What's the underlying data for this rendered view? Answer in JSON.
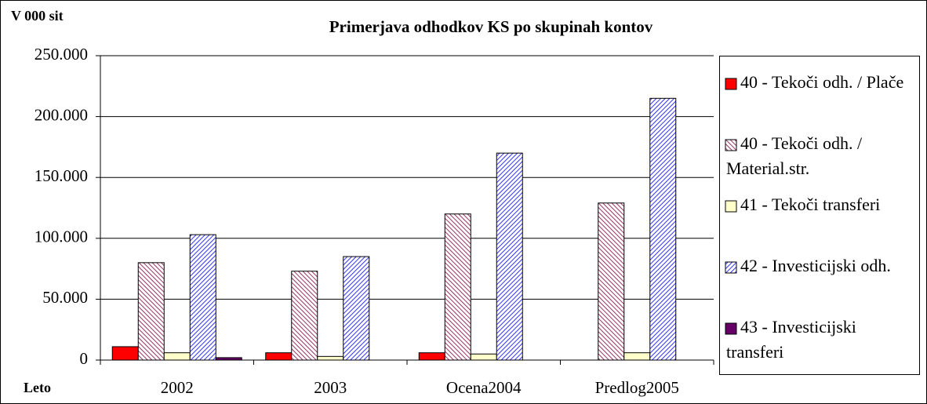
{
  "chart_data": {
    "type": "bar",
    "title": "Primerjava odhodkov KS po skupinah kontov",
    "y_label": "V 000 sit",
    "x_label": "Leto",
    "categories": [
      "2002",
      "2003",
      "Ocena2004",
      "Predlog2005"
    ],
    "series": [
      {
        "name": "40 - Tekoči odh. / Plače",
        "color": "#ff0000",
        "values": [
          11000,
          6000,
          6000,
          0
        ]
      },
      {
        "name": "40 - Tekoči odh. / Material.str.",
        "color": "#993366",
        "pattern": "hatch",
        "values": [
          80000,
          73000,
          120000,
          129000
        ]
      },
      {
        "name": "41 - Tekoči transferi",
        "color": "#ffffcc",
        "values": [
          6000,
          3000,
          5000,
          6000
        ]
      },
      {
        "name": "42 - Investicijski odh.",
        "color": "#3333ff",
        "pattern": "hatch",
        "values": [
          103000,
          85000,
          170000,
          215000
        ]
      },
      {
        "name": "43 - Investicijski transferi",
        "color": "#660066",
        "values": [
          2000,
          0,
          0,
          0
        ]
      }
    ],
    "ylim": [
      0,
      250000
    ],
    "yticks": [
      0,
      {
        "value": 50000,
        "label": "50.000"
      },
      {
        "value": 100000,
        "label": "100.000"
      },
      {
        "value": 150000,
        "label": "150.000"
      },
      {
        "value": 200000,
        "label": "200.000"
      },
      {
        "value": 250000,
        "label": "250.000"
      }
    ],
    "grid": true,
    "legend": "right"
  }
}
